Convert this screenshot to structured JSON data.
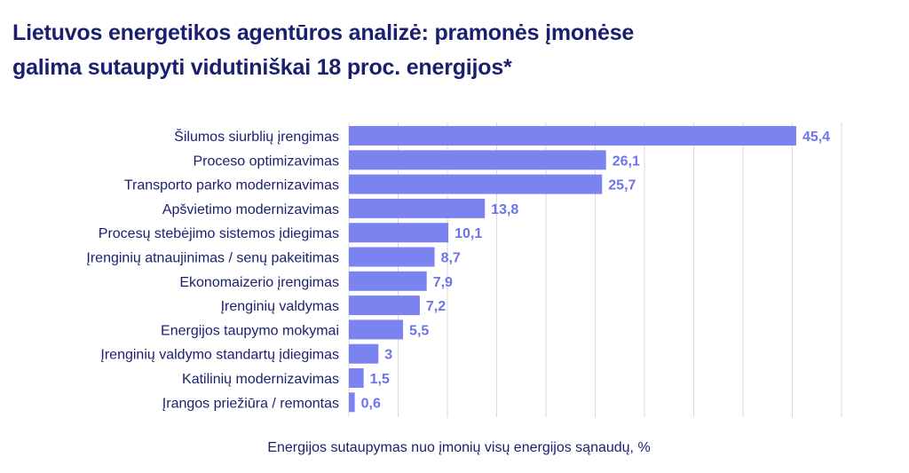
{
  "title_line1": "Lietuvos energetikos agentūros analizė: pramonės įmonėse",
  "title_line2": "galima sutaupyti vidutiniškai 18 proc. energijos*",
  "colors": {
    "bar": "#7b83f0",
    "value_label": "#6b74ea",
    "text": "#1a1f6e",
    "grid": "#d9d9d9"
  },
  "chart_data": {
    "type": "bar",
    "orientation": "horizontal",
    "title": "Lietuvos energetikos agentūros analizė: pramonės įmonėse galima sutaupyti vidutiniškai 18 proc. energijos*",
    "xlabel": "Energijos sutaupymas nuo įmonių visų energijos sąnaudų, %",
    "ylabel": "",
    "xlim": [
      0,
      50
    ],
    "grid": true,
    "categories": [
      "Šilumos siurblių įrengimas",
      "Proceso optimizavimas",
      "Transporto parko modernizavimas",
      "Apšvietimo modernizavimas",
      "Procesų stebėjimo sistemos įdiegimas",
      "Įrenginių atnaujinimas / senų pakeitimas",
      "Ekonomaizerio įrengimas",
      "Įrenginių valdymas",
      "Energijos taupymo mokymai",
      "Įrenginių valdymo standartų įdiegimas",
      "Katilinių modernizavimas",
      "Įrangos priežiūra / remontas"
    ],
    "values": [
      45.4,
      26.1,
      25.7,
      13.8,
      10.1,
      8.7,
      7.9,
      7.2,
      5.5,
      3,
      1.5,
      0.6
    ],
    "value_labels": [
      "45,4",
      "26,1",
      "25,7",
      "13,8",
      "10,1",
      "8,7",
      "7,9",
      "7,2",
      "5,5",
      "3",
      "1,5",
      "0,6"
    ]
  }
}
